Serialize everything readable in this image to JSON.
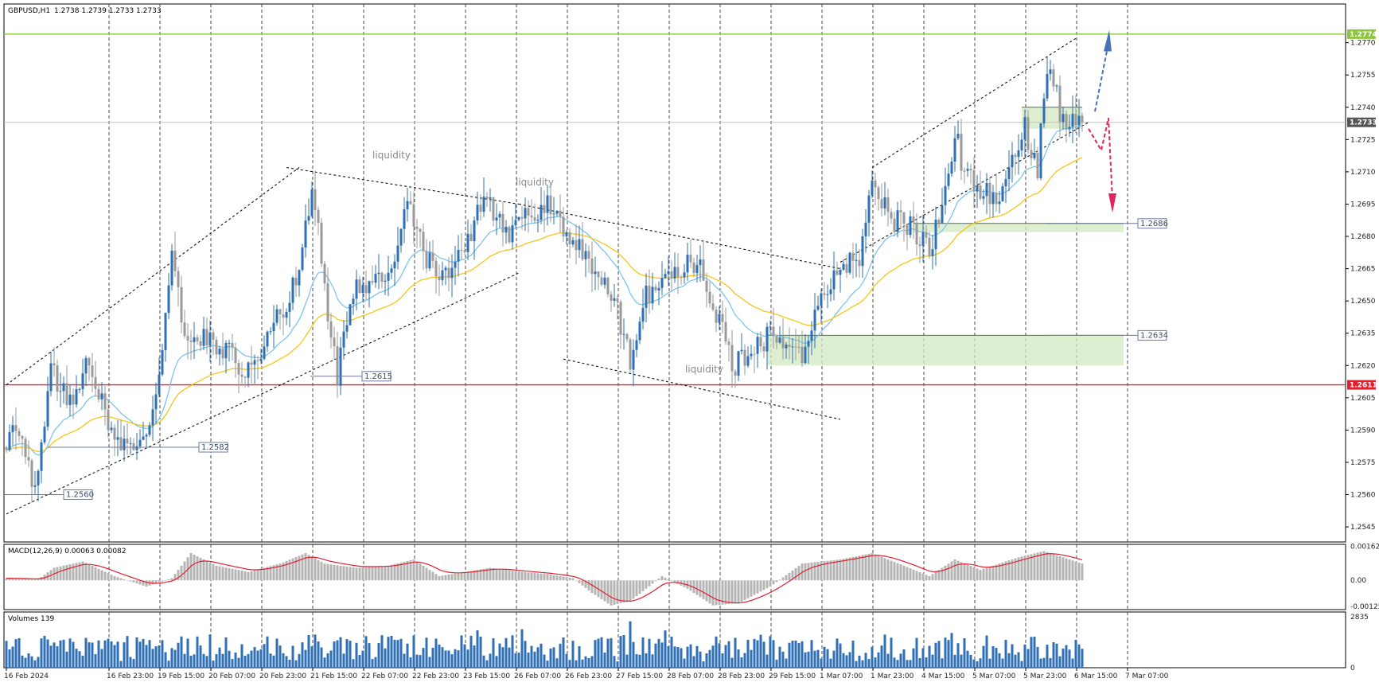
{
  "header": {
    "symbol": "GBPUSD,H1",
    "ohlc": "1.2738 1.2739 1.2733 1.2733"
  },
  "indicators": {
    "macd_label": "MACD(12,26,9) 0.00063 0.00082",
    "volumes_label": "Volumes 139"
  },
  "notes": [
    "liquidity",
    "liquidity",
    "liquidity"
  ],
  "colors": {
    "bull": "#2f6fb3",
    "bear": "#9a9a9a",
    "ema_fast": "#7ec4ee",
    "ema_slow": "#f5c518",
    "resistance": "#8cc63f",
    "support": "#e0202e",
    "zone_fill": "#d3e8c2",
    "macd_signal": "#e0202e",
    "forecast_up": "#4a70b8",
    "forecast_down": "#e3245a"
  },
  "chart_data": {
    "type": "candlestick",
    "symbol": "GBPUSD",
    "timeframe": "H1",
    "y_axis": {
      "range": [
        1.2538,
        1.2788
      ],
      "ticks": [
        "1.2545",
        "1.2560",
        "1.2575",
        "1.2590",
        "1.2605",
        "1.2620",
        "1.2635",
        "1.2650",
        "1.2665",
        "1.2680",
        "1.2695",
        "1.2710",
        "1.2725",
        "1.2740",
        "1.2755",
        "1.2770"
      ]
    },
    "x_axis": {
      "ticks": [
        "16 Feb 2024",
        "16 Feb 23:00",
        "19 Feb 15:00",
        "20 Feb 07:00",
        "20 Feb 23:00",
        "21 Feb 15:00",
        "22 Feb 07:00",
        "22 Feb 23:00",
        "23 Feb 15:00",
        "26 Feb 07:00",
        "26 Feb 23:00",
        "27 Feb 15:00",
        "28 Feb 07:00",
        "28 Feb 23:00",
        "29 Feb 15:00",
        "1 Mar 07:00",
        "1 Mar 23:00",
        "4 Mar 15:00",
        "5 Mar 07:00",
        "5 Mar 23:00",
        "6 Mar 15:00",
        "7 Mar 07:00"
      ],
      "tick_index": [
        0,
        16,
        32,
        48,
        64,
        80,
        96,
        112,
        128,
        144,
        160,
        176,
        192,
        208,
        224,
        240,
        256,
        272,
        288,
        304,
        320,
        336
      ]
    },
    "anchors": [
      [
        0,
        1.2582
      ],
      [
        4,
        1.2592
      ],
      [
        9,
        1.256
      ],
      [
        14,
        1.2618
      ],
      [
        20,
        1.2603
      ],
      [
        26,
        1.2625
      ],
      [
        33,
        1.2588
      ],
      [
        40,
        1.258
      ],
      [
        46,
        1.2596
      ],
      [
        52,
        1.2668
      ],
      [
        56,
        1.2638
      ],
      [
        62,
        1.2632
      ],
      [
        70,
        1.2625
      ],
      [
        76,
        1.2617
      ],
      [
        84,
        1.2638
      ],
      [
        92,
        1.2662
      ],
      [
        96,
        1.2705
      ],
      [
        101,
        1.2645
      ],
      [
        104,
        1.2615
      ],
      [
        108,
        1.2653
      ],
      [
        116,
        1.2661
      ],
      [
        122,
        1.2668
      ],
      [
        126,
        1.27
      ],
      [
        132,
        1.267
      ],
      [
        138,
        1.2662
      ],
      [
        144,
        1.2673
      ],
      [
        150,
        1.2698
      ],
      [
        158,
        1.268
      ],
      [
        164,
        1.269
      ],
      [
        170,
        1.2695
      ],
      [
        176,
        1.2682
      ],
      [
        182,
        1.267
      ],
      [
        190,
        1.2655
      ],
      [
        196,
        1.2623
      ],
      [
        200,
        1.265
      ],
      [
        206,
        1.266
      ],
      [
        212,
        1.2665
      ],
      [
        218,
        1.2668
      ],
      [
        224,
        1.264
      ],
      [
        228,
        1.262
      ],
      [
        234,
        1.2624
      ],
      [
        240,
        1.2636
      ],
      [
        245,
        1.2627
      ],
      [
        248,
        1.2634
      ],
      [
        250,
        1.262
      ],
      [
        256,
        1.2652
      ],
      [
        262,
        1.2665
      ],
      [
        268,
        1.267
      ],
      [
        272,
        1.2705
      ],
      [
        278,
        1.2688
      ],
      [
        284,
        1.2684
      ],
      [
        290,
        1.2673
      ],
      [
        296,
        1.271
      ],
      [
        299,
        1.273
      ],
      [
        300,
        1.2712
      ],
      [
        306,
        1.2703
      ],
      [
        311,
        1.2695
      ],
      [
        316,
        1.2713
      ],
      [
        320,
        1.273
      ],
      [
        324,
        1.271
      ],
      [
        326,
        1.2748
      ],
      [
        328,
        1.2758
      ],
      [
        331,
        1.2738
      ],
      [
        333,
        1.2728
      ],
      [
        336,
        1.2735
      ],
      [
        338,
        1.2733
      ]
    ],
    "candle_count": 339,
    "last_price": "1.2733",
    "ema_fast_period": 20,
    "ema_slow_period": 50,
    "levels": [
      {
        "label": "1.2774",
        "price": 1.2774,
        "kind": "resistance"
      },
      {
        "label": "1.2611",
        "price": 1.2611,
        "kind": "support"
      }
    ],
    "marked_prices": [
      {
        "label": "1.2686",
        "price": 1.2686
      },
      {
        "label": "1.2634",
        "price": 1.2634
      },
      {
        "label": "1.2615",
        "price": 1.2615
      },
      {
        "label": "1.2582",
        "price": 1.2582
      },
      {
        "label": "1.2560",
        "price": 1.256
      }
    ],
    "zones": [
      {
        "from_index": 285,
        "to_index": 351,
        "low": 1.2682,
        "high": 1.2686
      },
      {
        "from_index": 239,
        "to_index": 351,
        "low": 1.262,
        "high": 1.2634
      },
      {
        "from_index": 319,
        "to_index": 338,
        "low": 1.273,
        "high": 1.274
      }
    ],
    "trendlines": [
      {
        "from": [
          0,
          1.2551
        ],
        "to": [
          161,
          1.2663
        ]
      },
      {
        "from": [
          0,
          1.2611
        ],
        "to": [
          92,
          1.2712
        ]
      },
      {
        "from": [
          88,
          1.2712
        ],
        "to": [
          161,
          1.2695
        ]
      },
      {
        "from": [
          161,
          1.2695
        ],
        "to": [
          262,
          1.2665
        ]
      },
      {
        "from": [
          175,
          1.2623
        ],
        "to": [
          262,
          1.2595
        ]
      },
      {
        "from": [
          272,
          1.2712
        ],
        "to": [
          336,
          1.2772
        ]
      },
      {
        "from": [
          262,
          1.2668
        ],
        "to": [
          340,
          1.2733
        ]
      }
    ],
    "macd": {
      "ticks": [
        "0.00162",
        "0.00",
        "-0.00125"
      ],
      "range": [
        -0.0014,
        0.00172
      ],
      "anchors": [
        [
          0,
          0.0001
        ],
        [
          10,
          5e-05
        ],
        [
          15,
          0.0006
        ],
        [
          24,
          0.0009
        ],
        [
          34,
          0.0002
        ],
        [
          44,
          -0.0003
        ],
        [
          52,
          0.0001
        ],
        [
          58,
          0.0013
        ],
        [
          66,
          0.0007
        ],
        [
          76,
          0.0004
        ],
        [
          86,
          0.0008
        ],
        [
          94,
          0.0013
        ],
        [
          100,
          0.0008
        ],
        [
          110,
          0.0006
        ],
        [
          120,
          0.0007
        ],
        [
          128,
          0.001
        ],
        [
          136,
          0.0002
        ],
        [
          144,
          0.0004
        ],
        [
          152,
          0.0006
        ],
        [
          162,
          0.0004
        ],
        [
          170,
          0.0003
        ],
        [
          178,
          0.0001
        ],
        [
          184,
          -0.0006
        ],
        [
          190,
          -0.0012
        ],
        [
          196,
          -0.001
        ],
        [
          206,
          0.0002
        ],
        [
          214,
          -0.0004
        ],
        [
          222,
          -0.0012
        ],
        [
          230,
          -0.0011
        ],
        [
          240,
          -0.0003
        ],
        [
          250,
          0.0008
        ],
        [
          262,
          0.001
        ],
        [
          272,
          0.0013
        ],
        [
          282,
          0.0007
        ],
        [
          290,
          0.0002
        ],
        [
          298,
          0.001
        ],
        [
          306,
          0.0005
        ],
        [
          318,
          0.0011
        ],
        [
          326,
          0.0014
        ],
        [
          338,
          0.0008
        ]
      ]
    },
    "volumes": {
      "ticks": [
        "2835",
        "0"
      ],
      "max": 2835
    }
  },
  "forecast": {
    "up_arrow": "blue dashed arrow up from last candle",
    "down_arrow": "red dashed zig-zag arrow down"
  }
}
